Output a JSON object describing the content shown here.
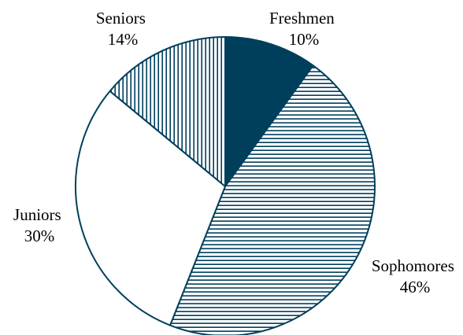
{
  "chart_data": {
    "type": "pie",
    "title": "",
    "slices": [
      {
        "label": "Freshmen",
        "value": 10,
        "value_label": "10%",
        "fill": "solid"
      },
      {
        "label": "Sophomores",
        "value": 46,
        "value_label": "46%",
        "fill": "horizontal"
      },
      {
        "label": "Juniors",
        "value": 30,
        "value_label": "30%",
        "fill": "none"
      },
      {
        "label": "Seniors",
        "value": 14,
        "value_label": "14%",
        "fill": "vertical"
      }
    ],
    "start": "top",
    "direction": "clockwise",
    "legend": "none"
  },
  "colors": {
    "ink": "#003f5c",
    "background": "#ffffff"
  }
}
